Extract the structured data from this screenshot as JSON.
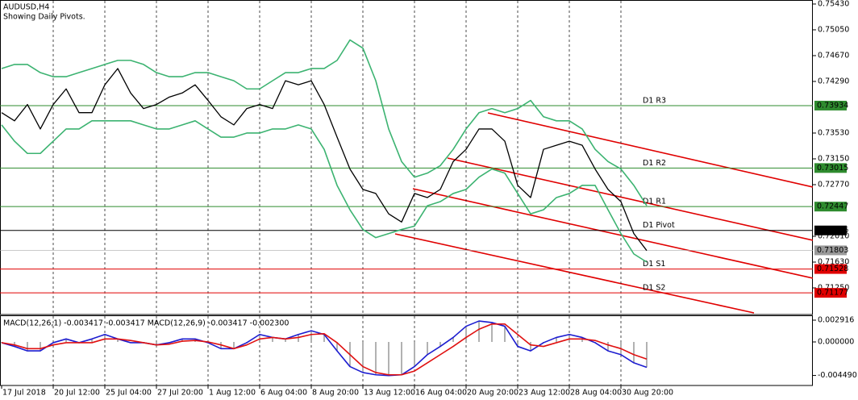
{
  "chart_data": [
    {
      "type": "line",
      "title": "AUDUSD,H4",
      "subtitle": "Showing Daily Pivots.",
      "categories": [
        "17 Jul 2018",
        null,
        null,
        null,
        "20 Jul 12:00",
        null,
        null,
        null,
        "25 Jul 04:00",
        null,
        null,
        null,
        "27 Jul 20:00",
        null,
        null,
        null,
        "1 Aug 12:00",
        null,
        null,
        null,
        "6 Aug 04:00",
        null,
        null,
        null,
        "8 Aug 20:00",
        null,
        null,
        null,
        "13 Aug 12:00",
        null,
        null,
        null,
        "16 Aug 04:00",
        null,
        null,
        null,
        "20 Aug 20:00",
        null,
        null,
        null,
        "23 Aug 12:00",
        null,
        null,
        null,
        "28 Aug 04:00",
        null,
        null,
        null,
        "30 Aug 20:00",
        null,
        null
      ],
      "series": [
        {
          "color": "#000000",
          "values": [
            0.7383,
            0.7371,
            0.7395,
            0.7359,
            0.7395,
            0.7418,
            0.7383,
            0.7383,
            0.7424,
            0.7448,
            0.7412,
            0.7389,
            0.7395,
            0.7406,
            0.7412,
            0.7424,
            0.7401,
            0.7377,
            0.7365,
            0.7389,
            0.7395,
            0.7389,
            0.743,
            0.7424,
            0.743,
            0.7395,
            0.7347,
            0.73,
            0.727,
            0.7264,
            0.7234,
            0.7222,
            0.7264,
            0.7258,
            0.727,
            0.7311,
            0.7329,
            0.7359,
            0.7359,
            0.7341,
            0.7276,
            0.7258,
            0.7329,
            0.7335,
            0.7341,
            0.7335,
            0.73,
            0.727,
            0.7252,
            0.7205,
            0.718
          ]
        },
        {
          "color": "#3cb371",
          "values": [
            0.7448,
            0.7454,
            0.7454,
            0.7442,
            0.7436,
            0.7436,
            0.7442,
            0.7448,
            0.7454,
            0.746,
            0.746,
            0.7454,
            0.7442,
            0.7436,
            0.7436,
            0.7442,
            0.7442,
            0.7436,
            0.743,
            0.7418,
            0.7418,
            0.743,
            0.7442,
            0.7442,
            0.7448,
            0.7448,
            0.746,
            0.749,
            0.7478,
            0.743,
            0.7359,
            0.7311,
            0.7288,
            0.7294,
            0.7305,
            0.7329,
            0.7359,
            0.7383,
            0.7389,
            0.7383,
            0.7389,
            0.7401,
            0.7377,
            0.7371,
            0.7371,
            0.7359,
            0.7329,
            0.7311,
            0.73,
            0.7276,
            0.7246
          ]
        },
        {
          "color": "#3cb371",
          "values": [
            0.7365,
            0.7341,
            0.7323,
            0.7323,
            0.7341,
            0.7359,
            0.7359,
            0.7371,
            0.7371,
            0.7371,
            0.7371,
            0.7365,
            0.7359,
            0.7359,
            0.7365,
            0.7371,
            0.7359,
            0.7347,
            0.7347,
            0.7353,
            0.7353,
            0.7359,
            0.7359,
            0.7365,
            0.7359,
            0.7329,
            0.7276,
            0.724,
            0.7211,
            0.7199,
            0.7205,
            0.7211,
            0.7216,
            0.7246,
            0.7252,
            0.7264,
            0.727,
            0.7288,
            0.73,
            0.7294,
            0.7264,
            0.7234,
            0.724,
            0.7258,
            0.7264,
            0.7276,
            0.7276,
            0.724,
            0.7205,
            0.7175,
            0.7163
          ]
        }
      ],
      "ylim": [
        0.70858,
        0.75489
      ],
      "yticks": [
        {
          "value": 0.7543,
          "label": "0.75430"
        },
        {
          "value": 0.7505,
          "label": "0.75050"
        },
        {
          "value": 0.7467,
          "label": "0.74670"
        },
        {
          "value": 0.7429,
          "label": "0.74290"
        },
        {
          "value": 0.7353,
          "label": "0.73530"
        },
        {
          "value": 0.7315,
          "label": "0.73150"
        },
        {
          "value": 0.7277,
          "label": "0.72770"
        },
        {
          "value": 0.7201,
          "label": "0.72010"
        },
        {
          "value": 0.7163,
          "label": "0.71630"
        },
        {
          "value": 0.7125,
          "label": "0.71250"
        }
      ],
      "grid": true,
      "levels": [
        {
          "name": "D1 R3",
          "value": 0.73934,
          "color": "#2e8b2e"
        },
        {
          "name": "D1 R2",
          "value": 0.73015,
          "color": "#2e8b2e"
        },
        {
          "name": "D1 R1",
          "value": 0.72447,
          "color": "#2e8b2e"
        },
        {
          "name": "D1 Pivot",
          "value": 0.72096,
          "color": "#000000"
        },
        {
          "name": "D1 S1",
          "value": 0.71528,
          "color": "#e00000"
        },
        {
          "name": "D1 S2",
          "value": 0.71177,
          "color": "#e00000"
        }
      ],
      "current_price": 0.71803
    },
    {
      "type": "macd",
      "title": "MACD(12,26,1) -0.003417 -0.003417 MACD(12,26,9) -0.003417 -0.002300",
      "histogram": true,
      "series": [
        {
          "color": "#1c1cd0",
          "values": [
            -0.0001,
            -0.0006,
            -0.0012,
            -0.0012,
            -0.0001,
            0.0004,
            -0.0001,
            0.0004,
            0.001,
            0.0004,
            -0.0001,
            -0.0001,
            -0.0004,
            -0.0001,
            0.0004,
            0.0004,
            -0.0001,
            -0.0009,
            -0.0009,
            -0.0001,
            0.001,
            0.0006,
            0.0004,
            0.001,
            0.0015,
            0.001,
            -0.0012,
            -0.0033,
            -0.0041,
            -0.0044,
            -0.0045,
            -0.0044,
            -0.0033,
            -0.0017,
            -0.0006,
            0.0006,
            0.0021,
            0.0028,
            0.0026,
            0.0021,
            -0.0006,
            -0.0012,
            -0.0001,
            0.0006,
            0.001,
            0.0006,
            -0.0001,
            -0.0012,
            -0.0017,
            -0.0028,
            -0.0034
          ]
        },
        {
          "color": "#e01010",
          "values": [
            -0.0001,
            -0.0004,
            -0.0009,
            -0.0009,
            -0.0004,
            -0.0001,
            -0.0001,
            -0.0001,
            0.0004,
            0.0004,
            0.0002,
            -0.0001,
            -0.0004,
            -0.0003,
            0.0001,
            0.0002,
            0,
            -0.0004,
            -0.0009,
            -0.0004,
            0.0004,
            0.0006,
            0.0004,
            0.0006,
            0.001,
            0.0011,
            -0.0001,
            -0.0017,
            -0.0033,
            -0.0041,
            -0.0044,
            -0.0044,
            -0.0039,
            -0.0028,
            -0.0017,
            -0.0006,
            0.0006,
            0.0017,
            0.0024,
            0.0024,
            0.001,
            -0.0004,
            -0.0006,
            -0.0001,
            0.0004,
            0.0004,
            0.0002,
            -0.0004,
            -0.0009,
            -0.0017,
            -0.0023
          ]
        }
      ],
      "ylim": [
        -0.005832,
        0.003564
      ],
      "yticks": [
        0.002916,
        {
          "value": 0,
          "label": "0.000000"
        },
        {
          "value": -0.00449,
          "label": "-0.004490"
        }
      ]
    }
  ]
}
